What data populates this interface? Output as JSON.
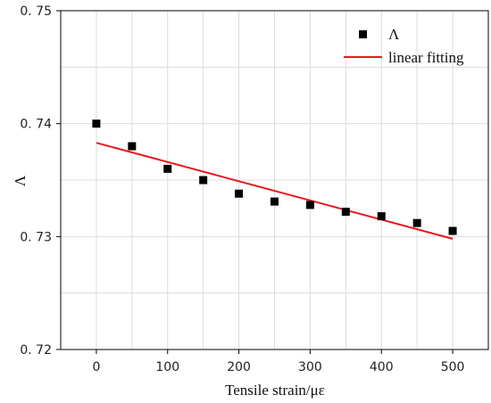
{
  "chart_data": {
    "type": "scatter",
    "title": "",
    "xlabel": "Tensile strain/με",
    "ylabel": "Λ",
    "xlim": [
      -50,
      550
    ],
    "ylim": [
      0.72,
      0.75
    ],
    "xticks": [
      0,
      100,
      200,
      300,
      400,
      500
    ],
    "yticks": [
      0.72,
      0.73,
      0.74,
      0.75
    ],
    "xtick_labels": [
      "0",
      "100",
      "200",
      "300",
      "400",
      "500"
    ],
    "ytick_labels": [
      "0. 72",
      "0. 73",
      "0. 74",
      "0. 75"
    ],
    "grid": true,
    "legend_position": "top-right",
    "series": [
      {
        "name": "Λ",
        "kind": "scatter",
        "marker": "square",
        "color": "#000000",
        "x": [
          0,
          50,
          100,
          150,
          200,
          250,
          300,
          350,
          400,
          450,
          500
        ],
        "y": [
          0.74,
          0.738,
          0.736,
          0.735,
          0.7338,
          0.7331,
          0.7328,
          0.7322,
          0.7318,
          0.7312,
          0.7305
        ]
      },
      {
        "name": "linear fitting",
        "kind": "line",
        "color": "#e8171b",
        "x": [
          0,
          500
        ],
        "y": [
          0.7383,
          0.7298
        ]
      }
    ]
  }
}
